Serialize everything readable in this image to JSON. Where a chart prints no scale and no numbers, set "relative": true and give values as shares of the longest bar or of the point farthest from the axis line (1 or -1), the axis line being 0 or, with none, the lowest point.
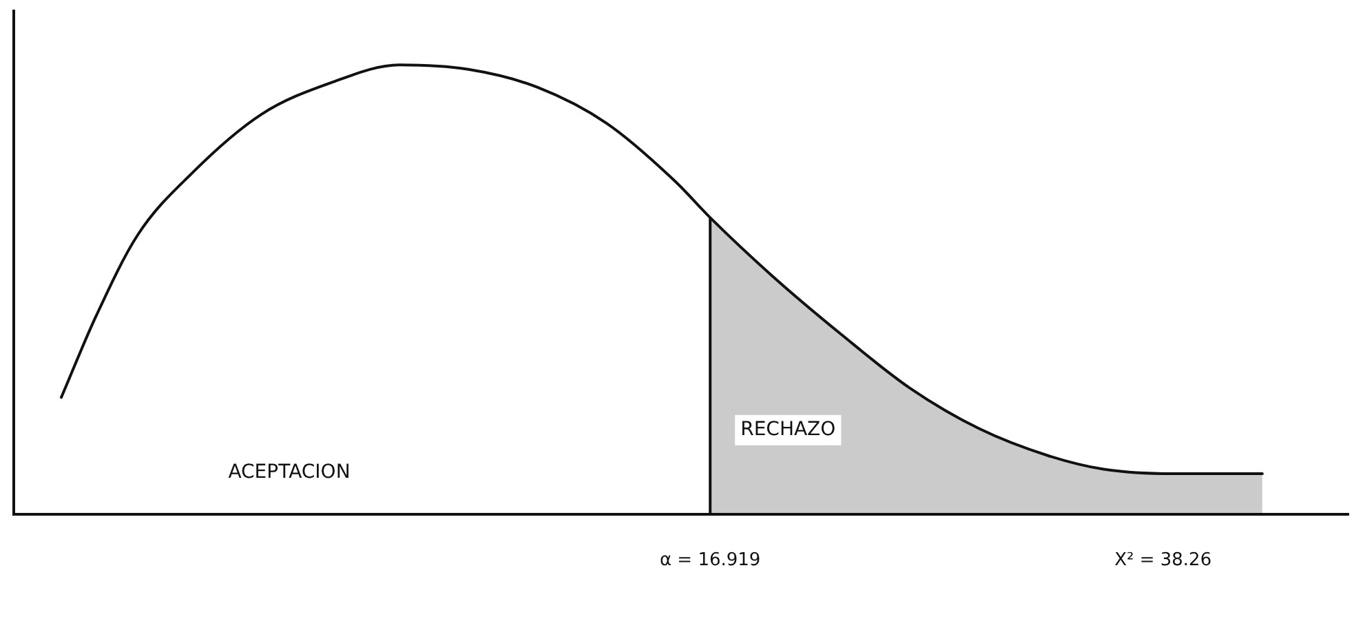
{
  "chart_data": {
    "type": "line",
    "relative": true,
    "x": [
      -13.66,
      -12.03,
      -10.08,
      -7.48,
      -4.23,
      -0.97,
      2.28,
      5.53,
      8.79,
      12.04,
      15.29,
      16.919,
      19.85,
      23.1,
      26.35,
      29.61,
      32.86,
      35.46,
      38.72,
      42.94
    ],
    "series": [
      {
        "color": "#111111",
        "values": [
          0.26,
          0.44,
          0.62,
          0.76,
          0.89,
          0.96,
          1,
          0.99,
          0.95,
          0.87,
          0.74,
          0.66,
          0.53,
          0.4,
          0.28,
          0.19,
          0.13,
          0.1,
          0.09,
          0.09
        ]
      }
    ],
    "xlim": [
      -15.9,
      47.0
    ],
    "xticks": [
      {
        "value": 16.919,
        "label": "α = 16.919"
      },
      {
        "value": 38.26,
        "label": "X² = 38.26"
      }
    ],
    "bands": [
      {
        "axis": "x",
        "from": 16.919,
        "to": 42.94,
        "label": "RECHAZO",
        "color": "#111111"
      }
    ],
    "ref_lines": [
      {
        "axis": "x",
        "value": 16.919,
        "color": "#111111"
      }
    ],
    "annotations": [
      "ACEPTACION"
    ],
    "grid": false,
    "legend": false,
    "marker": "none",
    "line_style": "solid"
  }
}
